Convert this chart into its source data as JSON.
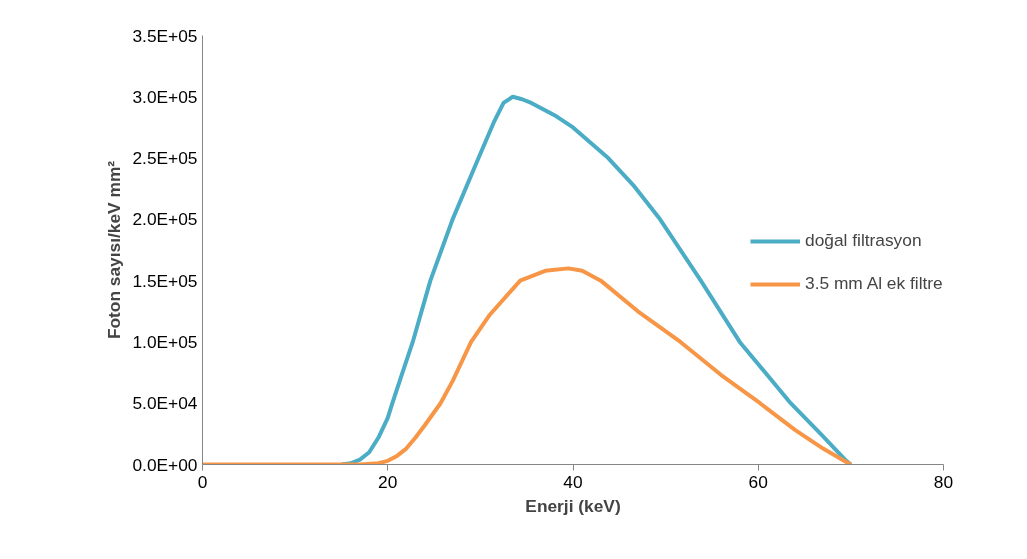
{
  "chart_data": {
    "type": "line",
    "xlabel": "Enerji (keV)",
    "ylabel": "Foton sayısı/keV mm²",
    "xlim": [
      0,
      80
    ],
    "xticks": [
      0,
      20,
      40,
      60,
      80
    ],
    "ylim": [
      0,
      350000
    ],
    "yticks": [
      {
        "value": 0,
        "label": "0.0E+00"
      },
      {
        "value": 50000,
        "label": "5.0E+04"
      },
      {
        "value": 100000,
        "label": "1.0E+05"
      },
      {
        "value": 150000,
        "label": "1.5E+05"
      },
      {
        "value": 200000,
        "label": "2.0E+05"
      },
      {
        "value": 250000,
        "label": "2.5E+05"
      },
      {
        "value": 300000,
        "label": "3.0E+05"
      },
      {
        "value": 350000,
        "label": "3.5E+05"
      }
    ],
    "grid": false,
    "legend": "right",
    "marker": "none",
    "line_style": "solid",
    "series": [
      {
        "name": "doğal filtrasyon",
        "color": "#4bacc6",
        "x": [
          15,
          16,
          17,
          18,
          19,
          20,
          20.5,
          21.5,
          22.7,
          24.6,
          27,
          29.8,
          31.5,
          32.5,
          33.5,
          34.5,
          35.5,
          38,
          40,
          43.8,
          46.5,
          49.4,
          53.8,
          58,
          63.5,
          67,
          69.5,
          70
        ],
        "values": [
          0,
          1000,
          4000,
          10000,
          22000,
          38000,
          50000,
          73000,
          100000,
          150000,
          200000,
          250000,
          280000,
          295000,
          300000,
          298000,
          295000,
          285000,
          275000,
          250000,
          228000,
          200000,
          150000,
          100000,
          50000,
          23000,
          3000,
          0
        ]
      },
      {
        "name": "3.5 mm Al ek filtre",
        "color": "#f79646",
        "x": [
          0,
          10,
          17,
          19,
          20,
          21,
          22,
          23,
          24,
          25.7,
          27,
          29,
          31,
          34.3,
          37,
          39.5,
          41,
          43,
          47,
          51.6,
          56,
          60.2,
          64,
          67,
          69.5,
          70
        ],
        "values": [
          0,
          0,
          0,
          1000,
          3000,
          7000,
          13000,
          22000,
          32000,
          50000,
          68000,
          100000,
          122000,
          150000,
          158000,
          160000,
          158000,
          150000,
          125000,
          100000,
          73000,
          50000,
          28000,
          13000,
          2000,
          0
        ]
      }
    ]
  }
}
